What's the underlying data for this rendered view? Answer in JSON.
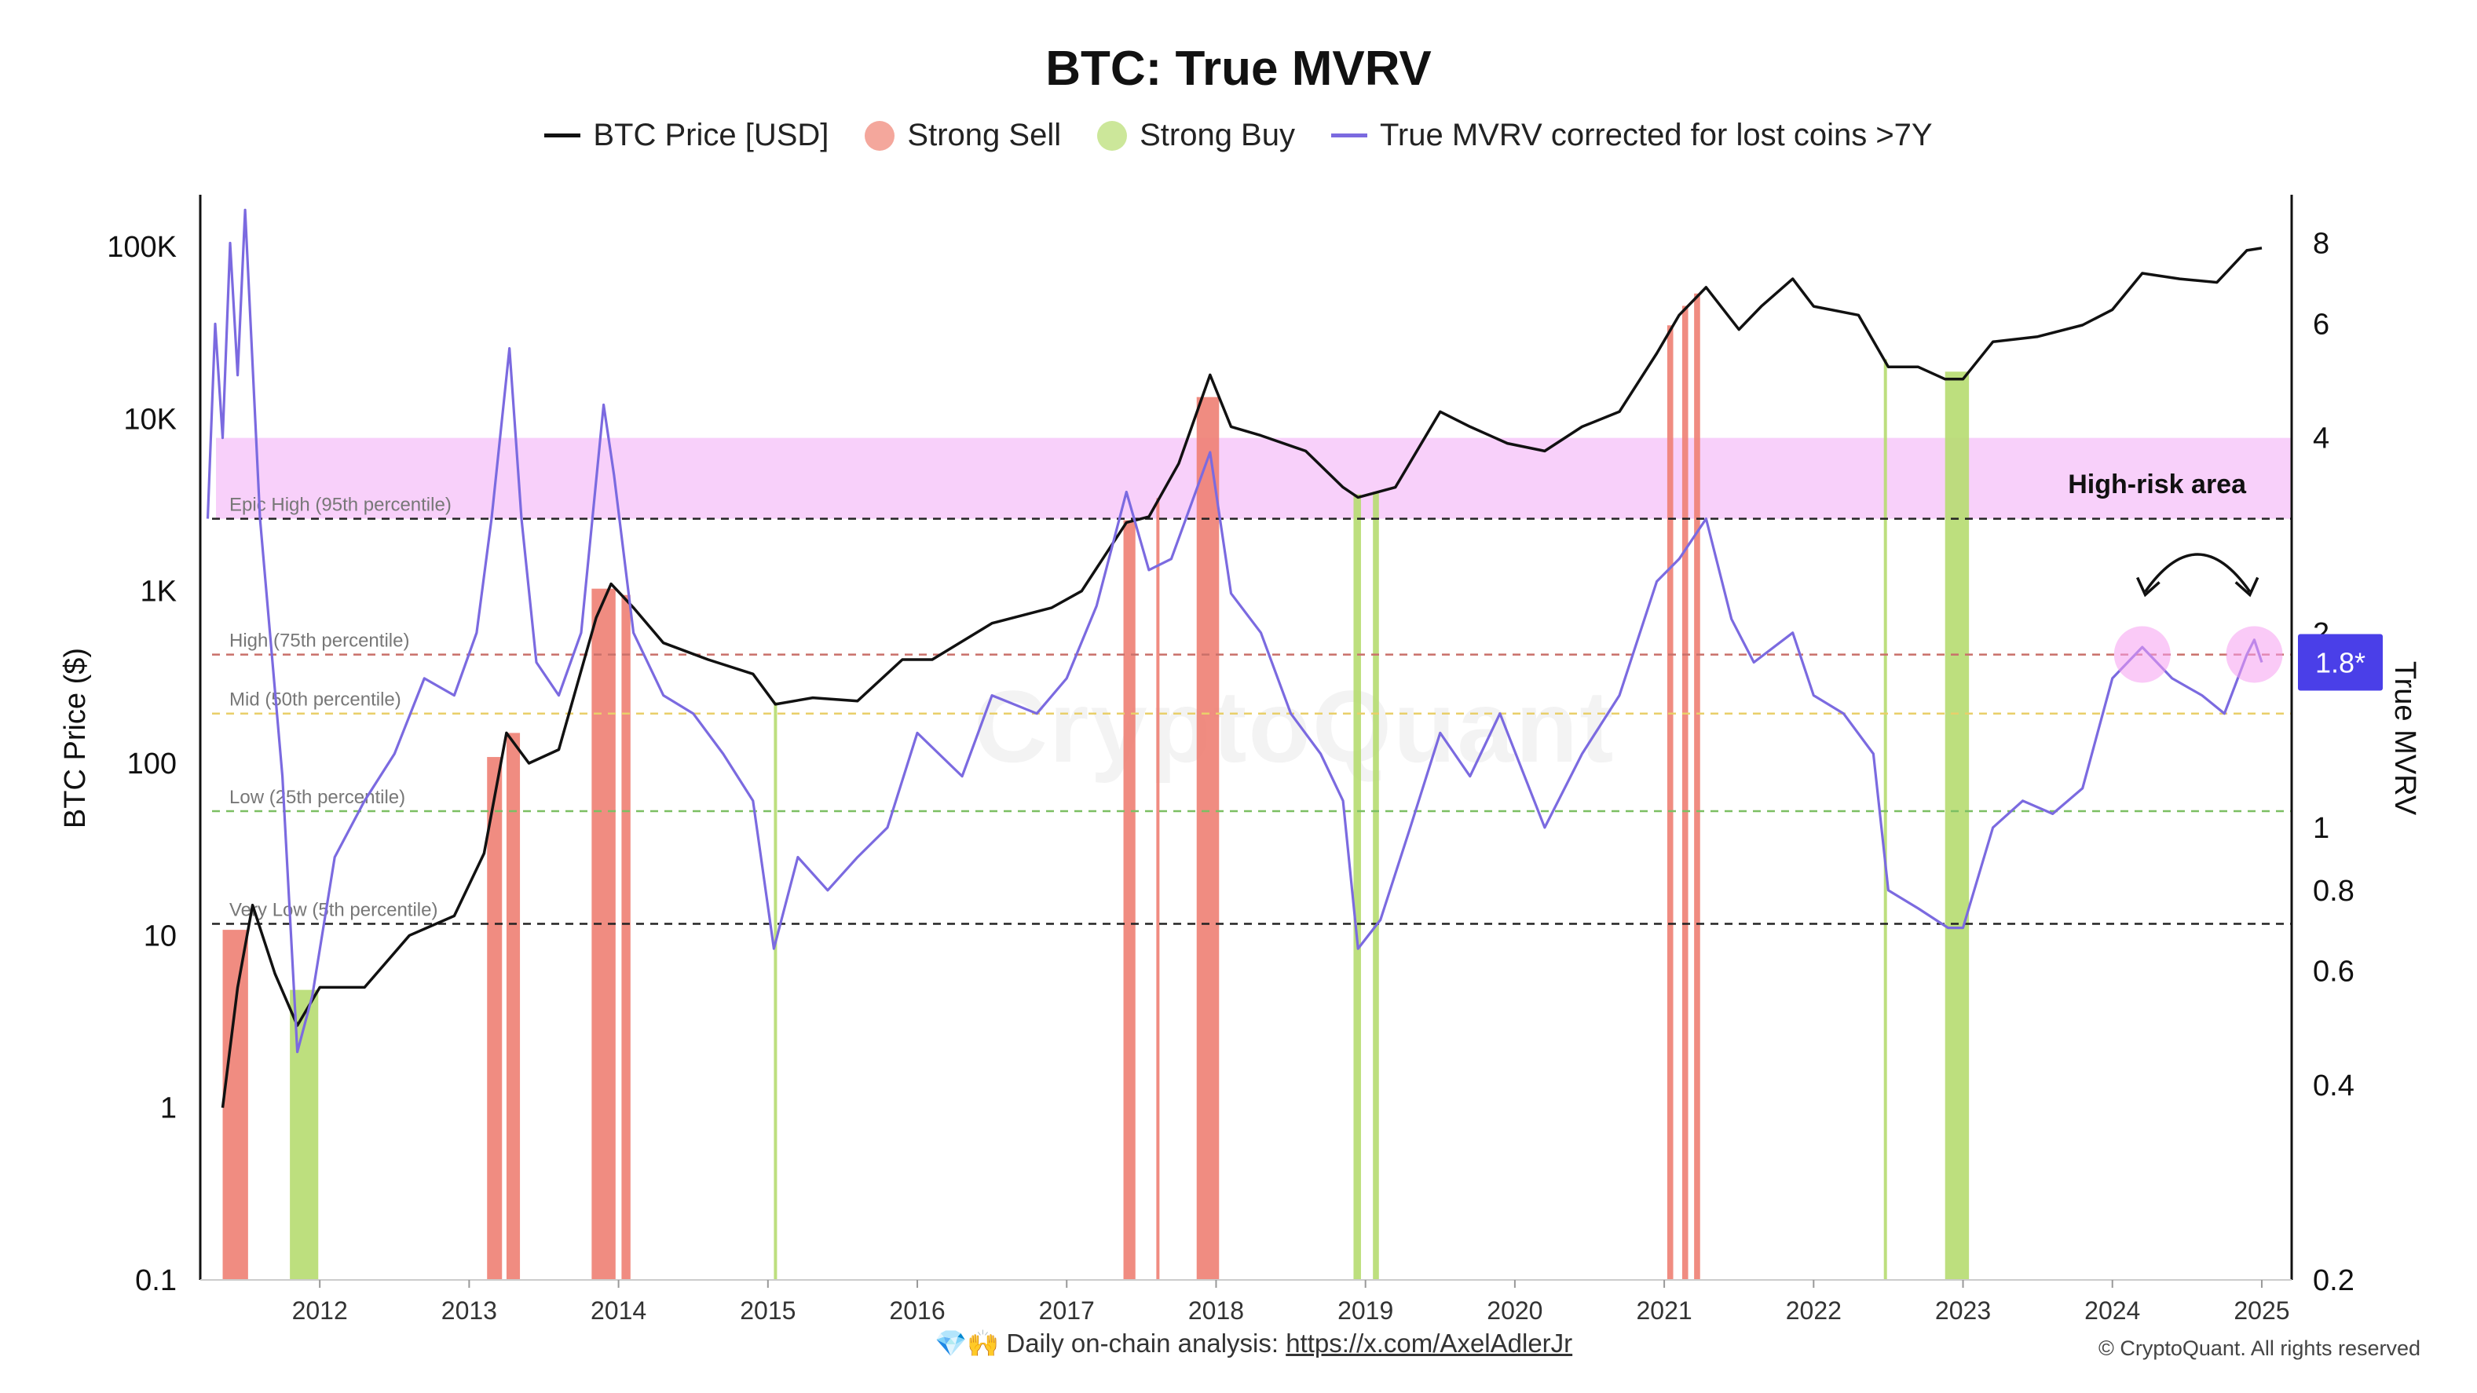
{
  "chart_data": {
    "type": "line",
    "title": "BTC: True MVRV",
    "legend": [
      {
        "label": "BTC Price [USD]",
        "kind": "line",
        "color": "#111111"
      },
      {
        "label": "Strong Sell",
        "kind": "dot",
        "color": "#f4a79c"
      },
      {
        "label": "Strong Buy",
        "kind": "dot",
        "color": "#cce79a"
      },
      {
        "label": "True MVRV corrected for lost coins >7Y",
        "kind": "line",
        "color": "#7b6ae0"
      }
    ],
    "legend_position": "top-center",
    "x_axis": {
      "type": "time",
      "range": [
        2011.2,
        2025.2
      ],
      "tick_labels": [
        "2012",
        "2013",
        "2014",
        "2015",
        "2016",
        "2017",
        "2018",
        "2019",
        "2020",
        "2021",
        "2022",
        "2023",
        "2024",
        "2025"
      ],
      "tick_values": [
        2012,
        2013,
        2014,
        2015,
        2016,
        2017,
        2018,
        2019,
        2020,
        2021,
        2022,
        2023,
        2024,
        2025
      ]
    },
    "y_left": {
      "label": "BTC Price ($)",
      "scale": "log",
      "range": [
        0.1,
        200000
      ],
      "tick_labels": [
        "0.1",
        "1",
        "10",
        "100",
        "1K",
        "10K",
        "100K"
      ],
      "tick_values": [
        0.1,
        1,
        10,
        100,
        1000,
        10000,
        100000
      ]
    },
    "y_right": {
      "label": "True MVRV",
      "scale": "log",
      "range": [
        0.2,
        9.5
      ],
      "tick_labels": [
        "0.2",
        "0.4",
        "0.6",
        "0.8",
        "1",
        "2",
        "4",
        "6",
        "8"
      ],
      "tick_values": [
        0.2,
        0.4,
        0.6,
        0.8,
        1,
        2,
        4,
        6,
        8
      ]
    },
    "thresholds": [
      {
        "label": "Epic High (95th percentile)",
        "value": 3.0,
        "color": "#222222"
      },
      {
        "label": "High (75th percentile)",
        "value": 1.85,
        "color": "#c9706a"
      },
      {
        "label": "Mid (50th percentile)",
        "value": 1.5,
        "color": "#e9cf6a"
      },
      {
        "label": "Low (25th percentile)",
        "value": 1.06,
        "color": "#7cbf63"
      },
      {
        "label": "Very Low (5th percentile)",
        "value": 0.71,
        "color": "#222222"
      }
    ],
    "high_risk_area": {
      "label": "High-risk area",
      "range": [
        3.0,
        4.0
      ],
      "color": "#f8cdfa"
    },
    "current_value_badge": {
      "label": "1.8*",
      "value": 1.8,
      "color": "#4a3fe8"
    },
    "strong_sell_periods": [
      [
        2011.35,
        2011.52
      ],
      [
        2013.12,
        2013.22
      ],
      [
        2013.25,
        2013.34
      ],
      [
        2013.82,
        2013.98
      ],
      [
        2014.02,
        2014.08
      ],
      [
        2017.38,
        2017.46
      ],
      [
        2017.6,
        2017.62
      ],
      [
        2017.87,
        2018.02
      ],
      [
        2021.02,
        2021.06
      ],
      [
        2021.12,
        2021.16
      ],
      [
        2021.2,
        2021.24
      ]
    ],
    "strong_buy_periods": [
      [
        2011.8,
        2011.99
      ],
      [
        2015.04,
        2015.06
      ],
      [
        2018.92,
        2018.97
      ],
      [
        2019.05,
        2019.09
      ],
      [
        2022.47,
        2022.49
      ],
      [
        2022.88,
        2023.04
      ]
    ],
    "series": [
      {
        "name": "BTC Price [USD]",
        "axis": "left",
        "x": [
          2011.35,
          2011.45,
          2011.55,
          2011.7,
          2011.85,
          2012.0,
          2012.3,
          2012.6,
          2012.9,
          2013.1,
          2013.25,
          2013.4,
          2013.6,
          2013.85,
          2013.95,
          2014.1,
          2014.3,
          2014.6,
          2014.9,
          2015.05,
          2015.3,
          2015.6,
          2015.9,
          2016.1,
          2016.5,
          2016.9,
          2017.1,
          2017.4,
          2017.55,
          2017.75,
          2017.96,
          2018.1,
          2018.3,
          2018.6,
          2018.85,
          2018.95,
          2019.2,
          2019.5,
          2019.7,
          2019.95,
          2020.2,
          2020.45,
          2020.7,
          2020.95,
          2021.1,
          2021.28,
          2021.5,
          2021.65,
          2021.86,
          2022.0,
          2022.3,
          2022.5,
          2022.7,
          2022.88,
          2023.0,
          2023.2,
          2023.5,
          2023.8,
          2024.0,
          2024.2,
          2024.45,
          2024.7,
          2024.9,
          2025.0
        ],
        "values": [
          1,
          5,
          15,
          6,
          3,
          5,
          5,
          10,
          13,
          30,
          150,
          100,
          120,
          700,
          1100,
          800,
          500,
          400,
          330,
          220,
          240,
          230,
          400,
          400,
          650,
          800,
          1000,
          2500,
          2700,
          5500,
          18000,
          9000,
          8000,
          6500,
          4000,
          3500,
          4000,
          11000,
          9000,
          7200,
          6500,
          9000,
          11000,
          24000,
          40000,
          58000,
          33000,
          45000,
          65000,
          45000,
          40000,
          20000,
          20000,
          17000,
          17000,
          28000,
          30000,
          35000,
          43000,
          70000,
          65000,
          62000,
          95000,
          98000
        ]
      },
      {
        "name": "True MVRV corrected for lost coins >7Y",
        "axis": "right",
        "x": [
          2011.25,
          2011.3,
          2011.35,
          2011.4,
          2011.45,
          2011.5,
          2011.6,
          2011.75,
          2011.85,
          2011.95,
          2012.1,
          2012.3,
          2012.5,
          2012.7,
          2012.9,
          2013.05,
          2013.15,
          2013.27,
          2013.35,
          2013.45,
          2013.6,
          2013.75,
          2013.9,
          2013.97,
          2014.1,
          2014.3,
          2014.5,
          2014.7,
          2014.9,
          2015.04,
          2015.2,
          2015.4,
          2015.6,
          2015.8,
          2016.0,
          2016.3,
          2016.5,
          2016.8,
          2017.0,
          2017.2,
          2017.4,
          2017.55,
          2017.7,
          2017.96,
          2018.1,
          2018.3,
          2018.5,
          2018.7,
          2018.85,
          2018.95,
          2019.1,
          2019.3,
          2019.5,
          2019.7,
          2019.9,
          2020.2,
          2020.45,
          2020.7,
          2020.95,
          2021.1,
          2021.28,
          2021.45,
          2021.6,
          2021.86,
          2022.0,
          2022.2,
          2022.4,
          2022.5,
          2022.7,
          2022.9,
          2023.0,
          2023.2,
          2023.4,
          2023.6,
          2023.8,
          2024.0,
          2024.2,
          2024.4,
          2024.6,
          2024.75,
          2024.9,
          2024.95,
          2025.0
        ],
        "values": [
          3,
          6,
          4,
          8,
          5,
          9,
          3,
          1.2,
          0.45,
          0.55,
          0.9,
          1.1,
          1.3,
          1.7,
          1.6,
          2,
          3,
          5.5,
          3,
          1.8,
          1.6,
          2,
          4.5,
          3.5,
          2,
          1.6,
          1.5,
          1.3,
          1.1,
          0.65,
          0.9,
          0.8,
          0.9,
          1,
          1.4,
          1.2,
          1.6,
          1.5,
          1.7,
          2.2,
          3.3,
          2.5,
          2.6,
          3.8,
          2.3,
          2.0,
          1.5,
          1.3,
          1.1,
          0.65,
          0.72,
          1.0,
          1.4,
          1.2,
          1.5,
          1.0,
          1.3,
          1.6,
          2.4,
          2.6,
          3.0,
          2.1,
          1.8,
          2.0,
          1.6,
          1.5,
          1.3,
          0.8,
          0.75,
          0.7,
          0.7,
          1.0,
          1.1,
          1.05,
          1.15,
          1.7,
          1.9,
          1.7,
          1.6,
          1.5,
          1.85,
          1.95,
          1.8
        ]
      }
    ],
    "annotations": [
      {
        "label": "High-risk area"
      }
    ],
    "grid": false
  },
  "footer": {
    "emoji": "💎🙌",
    "text": "Daily on-chain analysis: ",
    "link": "https://x.com/AxelAdlerJr",
    "copyright": "© CryptoQuant. All rights reserved"
  },
  "watermark": "CryptoQuant"
}
